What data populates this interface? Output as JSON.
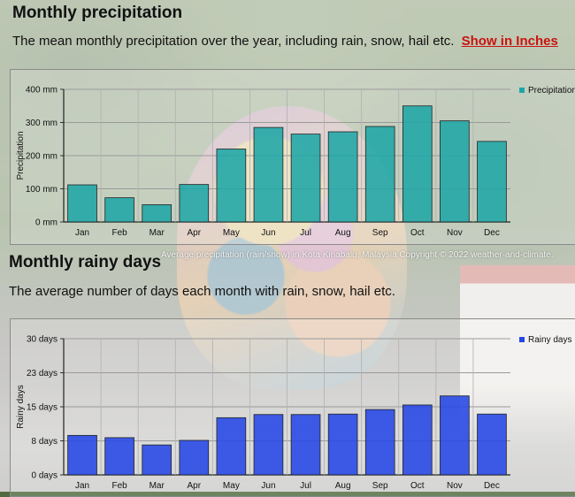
{
  "precipitation_section": {
    "title": "Monthly precipitation",
    "description": "The mean monthly precipitation over the year, including rain, snow, hail etc.",
    "link_label": "Show in Inches"
  },
  "rainy_section": {
    "title": "Monthly rainy days",
    "description": "The average number of days each month with rain, snow, hail etc."
  },
  "caption": "Average precipitation (rain/snow) in Kota Kinabalu, Malaysia   Copyright © 2022  weather-and-climate.",
  "colors": {
    "precip_bar": "#1fa6a6",
    "rainy_bar": "#2447e6",
    "link": "#c8140f"
  },
  "chart_data": [
    {
      "type": "bar",
      "categories": [
        "Jan",
        "Feb",
        "Mar",
        "Apr",
        "May",
        "Jun",
        "Jul",
        "Aug",
        "Sep",
        "Oct",
        "Nov",
        "Dec"
      ],
      "series": [
        {
          "name": "Precipitation",
          "values": [
            112,
            73,
            52,
            113,
            220,
            285,
            265,
            272,
            288,
            350,
            305,
            243
          ]
        }
      ],
      "ylabel": "Precipitation",
      "ylim": [
        0,
        400
      ],
      "yticks": [
        0,
        100,
        200,
        300,
        400
      ],
      "ytick_labels": [
        "0 mm",
        "100 mm",
        "200 mm",
        "300 mm",
        "400 mm"
      ],
      "grid": true,
      "legend": "top-right"
    },
    {
      "type": "bar",
      "categories": [
        "Jan",
        "Feb",
        "Mar",
        "Apr",
        "May",
        "Jun",
        "Jul",
        "Aug",
        "Sep",
        "Oct",
        "Nov",
        "Dec"
      ],
      "series": [
        {
          "name": "Rainy days",
          "values": [
            8.7,
            8.2,
            6.6,
            7.6,
            12.6,
            13.3,
            13.3,
            13.4,
            14.4,
            15.4,
            17.4,
            13.4
          ]
        }
      ],
      "ylabel": "Rainy days",
      "ylim": [
        0,
        30
      ],
      "yticks": [
        0,
        7.5,
        15,
        22.5,
        30
      ],
      "ytick_labels": [
        "0 days",
        "8 days",
        "15 days",
        "23 days",
        "30 days"
      ],
      "grid": true,
      "legend": "top-right"
    }
  ]
}
